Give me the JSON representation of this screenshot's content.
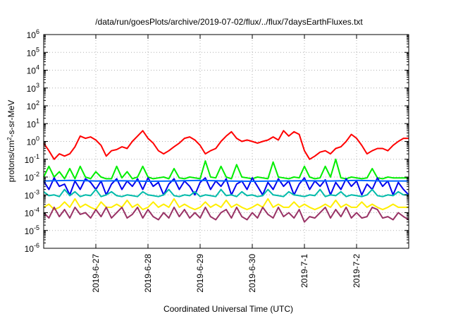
{
  "chart_data": {
    "type": "line",
    "title": "/data/run/goesPlots/archive/2019-07-02/flux/../flux/7daysEarthFluxes.txt",
    "xlabel": "Coordinated Universal Time (UTC)",
    "ylabel": {
      "base": "protons/cm",
      "sup": "2",
      "rest": "-s-sr-MeV"
    },
    "yscale": "log",
    "ylim_exp": [
      -6,
      6
    ],
    "y_ticks": [
      {
        "base": "10",
        "exp": "-6"
      },
      {
        "base": "10",
        "exp": "-5"
      },
      {
        "base": "10",
        "exp": "-4"
      },
      {
        "base": "10",
        "exp": "-3"
      },
      {
        "base": "10",
        "exp": "-2"
      },
      {
        "base": "10",
        "exp": "-1"
      },
      {
        "base": "10",
        "exp": "0"
      },
      {
        "base": "10",
        "exp": "1"
      },
      {
        "base": "10",
        "exp": "2"
      },
      {
        "base": "10",
        "exp": "3"
      },
      {
        "base": "10",
        "exp": "4"
      },
      {
        "base": "10",
        "exp": "5"
      },
      {
        "base": "10",
        "exp": "6"
      }
    ],
    "x_day_start": "2019-06-26",
    "x_days_span": 7,
    "x_ticks": [
      {
        "label": "2019-6-27",
        "day": 1
      },
      {
        "label": "2019-6-28",
        "day": 2
      },
      {
        "label": "2019-6-29",
        "day": 3
      },
      {
        "label": "2019-6-30",
        "day": 4
      },
      {
        "label": "2019-7-1",
        "day": 5
      },
      {
        "label": "2019-7-2",
        "day": 6
      }
    ],
    "grid": true,
    "legend": "none",
    "series": [
      {
        "color": "#ff0000",
        "x": [
          0,
          0.1,
          0.2,
          0.3,
          0.4,
          0.5,
          0.6,
          0.7,
          0.8,
          0.9,
          1,
          1.1,
          1.2,
          1.3,
          1.4,
          1.5,
          1.6,
          1.7,
          1.8,
          1.9,
          2,
          2.1,
          2.2,
          2.3,
          2.4,
          2.5,
          2.6,
          2.7,
          2.8,
          2.9,
          3,
          3.1,
          3.2,
          3.3,
          3.4,
          3.5,
          3.6,
          3.7,
          3.8,
          3.9,
          4,
          4.1,
          4.2,
          4.3,
          4.4,
          4.5,
          4.6,
          4.7,
          4.8,
          4.9,
          5,
          5.1,
          5.2,
          5.3,
          5.4,
          5.5,
          5.6,
          5.7,
          5.8,
          5.9,
          6,
          6.1,
          6.2,
          6.3,
          6.4,
          6.5,
          6.6,
          6.7,
          6.8,
          6.9,
          7
        ],
        "y": [
          0.8,
          0.3,
          0.1,
          0.2,
          0.15,
          0.2,
          0.5,
          2,
          1.5,
          1.8,
          1.2,
          0.6,
          0.15,
          0.3,
          0.35,
          0.5,
          0.4,
          1,
          2,
          4,
          1.5,
          0.8,
          0.3,
          0.2,
          0.3,
          0.5,
          0.8,
          1.5,
          1.8,
          1.2,
          0.6,
          0.2,
          0.3,
          0.4,
          1,
          2,
          3.5,
          1.5,
          1,
          1.2,
          1,
          0.8,
          1,
          1.2,
          1.8,
          1.2,
          4,
          2,
          3.5,
          2.5,
          0.3,
          0.1,
          0.15,
          0.25,
          0.3,
          0.2,
          0.4,
          0.5,
          1,
          2.5,
          1.5,
          0.6,
          0.2,
          0.3,
          0.4,
          0.4,
          0.3,
          0.6,
          1,
          1.5,
          1.5
        ]
      },
      {
        "color": "#00ee00",
        "x": [
          0,
          0.1,
          0.2,
          0.3,
          0.4,
          0.5,
          0.6,
          0.7,
          0.8,
          0.9,
          1,
          1.1,
          1.2,
          1.3,
          1.4,
          1.5,
          1.6,
          1.7,
          1.8,
          1.9,
          2,
          2.1,
          2.2,
          2.3,
          2.4,
          2.5,
          2.6,
          2.7,
          2.8,
          2.9,
          3,
          3.1,
          3.2,
          3.3,
          3.4,
          3.5,
          3.6,
          3.7,
          3.8,
          3.9,
          4,
          4.1,
          4.2,
          4.3,
          4.4,
          4.5,
          4.6,
          4.7,
          4.8,
          4.9,
          5,
          5.1,
          5.2,
          5.3,
          5.4,
          5.5,
          5.6,
          5.7,
          5.8,
          5.9,
          6,
          6.1,
          6.2,
          6.3,
          6.4,
          6.5,
          6.6,
          6.7,
          6.8,
          6.9,
          7
        ],
        "y": [
          0.01,
          0.04,
          0.01,
          0.02,
          0.008,
          0.03,
          0.008,
          0.04,
          0.01,
          0.008,
          0.02,
          0.01,
          0.008,
          0.008,
          0.04,
          0.009,
          0.02,
          0.008,
          0.01,
          0.04,
          0.01,
          0.008,
          0.009,
          0.01,
          0.008,
          0.03,
          0.009,
          0.008,
          0.01,
          0.009,
          0.008,
          0.08,
          0.01,
          0.009,
          0.04,
          0.01,
          0.008,
          0.05,
          0.01,
          0.009,
          0.008,
          0.01,
          0.009,
          0.008,
          0.07,
          0.01,
          0.009,
          0.008,
          0.01,
          0.009,
          0.04,
          0.01,
          0.008,
          0.009,
          0.04,
          0.01,
          0.1,
          0.009,
          0.008,
          0.01,
          0.009,
          0.008,
          0.009,
          0.03,
          0.009,
          0.008,
          0.01,
          0.009,
          0.009,
          0.009,
          0.009
        ]
      },
      {
        "color": "#0000ee",
        "x": [
          0,
          0.1,
          0.2,
          0.3,
          0.4,
          0.5,
          0.6,
          0.7,
          0.8,
          0.9,
          1,
          1.1,
          1.2,
          1.3,
          1.4,
          1.5,
          1.6,
          1.7,
          1.8,
          1.9,
          2,
          2.1,
          2.2,
          2.3,
          2.4,
          2.5,
          2.6,
          2.7,
          2.8,
          2.9,
          3,
          3.1,
          3.2,
          3.3,
          3.4,
          3.5,
          3.6,
          3.7,
          3.8,
          3.9,
          4,
          4.1,
          4.2,
          4.3,
          4.4,
          4.5,
          4.6,
          4.7,
          4.8,
          4.9,
          5,
          5.1,
          5.2,
          5.3,
          5.4,
          5.5,
          5.6,
          5.7,
          5.8,
          5.9,
          6,
          6.1,
          6.2,
          6.3,
          6.4,
          6.5,
          6.6,
          6.7,
          6.8,
          6.9,
          7
        ],
        "y": [
          0.006,
          0.002,
          0.009,
          0.003,
          0.004,
          0.001,
          0.006,
          0.002,
          0.008,
          0.005,
          0.002,
          0.006,
          0.001,
          0.004,
          0.008,
          0.002,
          0.006,
          0.003,
          0.008,
          0.002,
          0.009,
          0.003,
          0.005,
          0.001,
          0.004,
          0.008,
          0.002,
          0.006,
          0.003,
          0.001,
          0.005,
          0.009,
          0.002,
          0.006,
          0.003,
          0.008,
          0.001,
          0.004,
          0.006,
          0.002,
          0.009,
          0.003,
          0.001,
          0.005,
          0.002,
          0.008,
          0.003,
          0.006,
          0.001,
          0.004,
          0.009,
          0.002,
          0.006,
          0.003,
          0.007,
          0.001,
          0.005,
          0.002,
          0.008,
          0.003,
          0.006,
          0.001,
          0.004,
          0.002,
          0.009,
          0.003,
          0.006,
          0.001,
          0.005,
          0.002,
          0.001
        ]
      },
      {
        "color": "#0066ff",
        "x": [
          0,
          0.5,
          1,
          1.5,
          2,
          2.5,
          3,
          3.5,
          4,
          4.5,
          5,
          5.5,
          6,
          6.5,
          7
        ],
        "y": [
          0.006,
          0.0065,
          0.006,
          0.0062,
          0.0058,
          0.006,
          0.0065,
          0.006,
          0.0058,
          0.006,
          0.0062,
          0.006,
          0.0065,
          0.006,
          0.006
        ]
      },
      {
        "color": "#00bbaa",
        "x": [
          0,
          0.1,
          0.2,
          0.3,
          0.4,
          0.5,
          0.6,
          0.7,
          0.8,
          0.9,
          1,
          1.1,
          1.2,
          1.3,
          1.4,
          1.5,
          1.6,
          1.7,
          1.8,
          1.9,
          2,
          2.1,
          2.2,
          2.3,
          2.4,
          2.5,
          2.6,
          2.7,
          2.8,
          2.9,
          3,
          3.1,
          3.2,
          3.3,
          3.4,
          3.5,
          3.6,
          3.7,
          3.8,
          3.9,
          4,
          4.1,
          4.2,
          4.3,
          4.4,
          4.5,
          4.6,
          4.7,
          4.8,
          4.9,
          5,
          5.1,
          5.2,
          5.3,
          5.4,
          5.5,
          5.6,
          5.7,
          5.8,
          5.9,
          6,
          6.1,
          6.2,
          6.3,
          6.4,
          6.5,
          6.6,
          6.7,
          6.8,
          6.9,
          7
        ],
        "y": [
          0.0015,
          0.0009,
          0.001,
          0.0008,
          0.002,
          0.0009,
          0.0015,
          0.0008,
          0.001,
          0.0009,
          0.002,
          0.0008,
          0.001,
          0.0015,
          0.0009,
          0.0008,
          0.001,
          0.0009,
          0.0008,
          0.0015,
          0.001,
          0.0009,
          0.0008,
          0.001,
          0.002,
          0.0009,
          0.0008,
          0.001,
          0.0009,
          0.0015,
          0.0008,
          0.001,
          0.0009,
          0.0008,
          0.002,
          0.0009,
          0.001,
          0.0008,
          0.0015,
          0.0009,
          0.001,
          0.0008,
          0.0009,
          0.002,
          0.001,
          0.0009,
          0.0008,
          0.0015,
          0.001,
          0.0009,
          0.0008,
          0.001,
          0.0009,
          0.002,
          0.0008,
          0.001,
          0.0009,
          0.0015,
          0.0008,
          0.001,
          0.0009,
          0.0008,
          0.001,
          0.002,
          0.0009,
          0.0008,
          0.001,
          0.0009,
          0.0015,
          0.001,
          0.001
        ]
      },
      {
        "color": "#ffee00",
        "x": [
          0,
          0.1,
          0.2,
          0.3,
          0.4,
          0.5,
          0.6,
          0.7,
          0.8,
          0.9,
          1,
          1.1,
          1.2,
          1.3,
          1.4,
          1.5,
          1.6,
          1.7,
          1.8,
          1.9,
          2,
          2.1,
          2.2,
          2.3,
          2.4,
          2.5,
          2.6,
          2.7,
          2.8,
          2.9,
          3,
          3.1,
          3.2,
          3.3,
          3.4,
          3.5,
          3.6,
          3.7,
          3.8,
          3.9,
          4,
          4.1,
          4.2,
          4.3,
          4.4,
          4.5,
          4.6,
          4.7,
          4.8,
          4.9,
          5,
          5.1,
          5.2,
          5.3,
          5.4,
          5.5,
          5.6,
          5.7,
          5.8,
          5.9,
          6,
          6.1,
          6.2,
          6.3,
          6.4,
          6.5,
          6.6,
          6.7,
          6.8,
          6.9,
          7
        ],
        "y": [
          0.0002,
          0.0003,
          0.00015,
          0.0002,
          0.0004,
          0.0002,
          0.0006,
          0.0002,
          0.0003,
          0.0002,
          0.00015,
          0.0004,
          0.0002,
          0.0002,
          0.0003,
          0.0002,
          0.0005,
          0.0002,
          0.0003,
          0.00015,
          0.0002,
          0.0004,
          0.0002,
          0.0003,
          0.0002,
          0.0006,
          0.0002,
          0.0003,
          0.0002,
          0.00015,
          0.0002,
          0.0004,
          0.0002,
          0.0003,
          0.0002,
          0.0005,
          0.0002,
          0.0003,
          0.0002,
          0.00015,
          0.0002,
          0.0003,
          0.0002,
          0.0006,
          0.0002,
          0.0003,
          0.0002,
          0.0002,
          0.0004,
          0.0002,
          0.0003,
          0.0002,
          0.00015,
          0.0002,
          0.0003,
          0.0002,
          0.0005,
          0.0002,
          0.0003,
          0.0002,
          0.0002,
          0.0004,
          0.0002,
          0.0003,
          0.0002,
          0.00015,
          0.0002,
          0.0003,
          0.0002,
          0.0002,
          0.0002
        ]
      },
      {
        "color": "#993366",
        "x": [
          0,
          0.1,
          0.2,
          0.3,
          0.4,
          0.5,
          0.6,
          0.7,
          0.8,
          0.9,
          1,
          1.1,
          1.2,
          1.3,
          1.4,
          1.5,
          1.6,
          1.7,
          1.8,
          1.9,
          2,
          2.1,
          2.2,
          2.3,
          2.4,
          2.5,
          2.6,
          2.7,
          2.8,
          2.9,
          3,
          3.1,
          3.2,
          3.3,
          3.4,
          3.5,
          3.6,
          3.7,
          3.8,
          3.9,
          4,
          4.1,
          4.2,
          4.3,
          4.4,
          4.5,
          4.6,
          4.7,
          4.8,
          4.9,
          5,
          5.1,
          5.2,
          5.3,
          5.4,
          5.5,
          5.6,
          5.7,
          5.8,
          5.9,
          6,
          6.1,
          6.2,
          6.3,
          6.4,
          6.5,
          6.6,
          6.7,
          6.8,
          6.9,
          7
        ],
        "y": [
          0.0001,
          5e-05,
          0.0002,
          6e-05,
          0.00015,
          5e-05,
          0.0002,
          8e-05,
          0.0001,
          5e-05,
          0.00015,
          6e-05,
          0.0002,
          5e-05,
          0.0001,
          0.0002,
          5e-05,
          8e-05,
          0.0002,
          5e-05,
          0.00015,
          6e-05,
          4e-05,
          0.0001,
          5e-05,
          0.0002,
          6e-05,
          0.00015,
          5e-05,
          0.0001,
          5e-05,
          0.0002,
          6e-05,
          4e-05,
          0.0001,
          0.00015,
          5e-05,
          0.0002,
          6e-05,
          4e-05,
          0.0001,
          5e-05,
          0.0002,
          8e-05,
          5e-05,
          0.0002,
          6e-05,
          0.0001,
          5e-05,
          0.00015,
          3e-05,
          6e-05,
          5e-05,
          0.0001,
          0.0002,
          5e-05,
          0.00015,
          6e-05,
          0.0002,
          5e-05,
          0.0001,
          5e-05,
          6e-05,
          0.0002,
          0.00015,
          5e-05,
          6e-05,
          4e-05,
          0.0001,
          6e-05,
          4e-05
        ]
      }
    ]
  }
}
